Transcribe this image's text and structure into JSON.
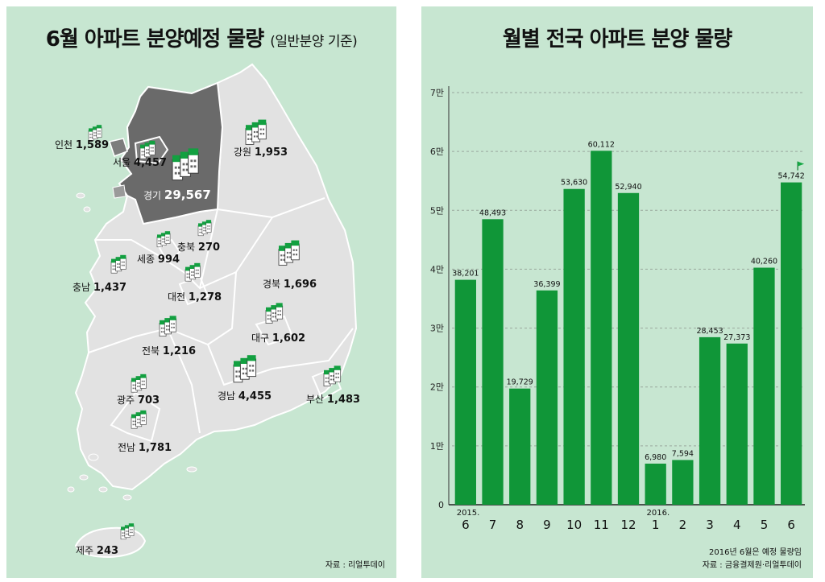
{
  "map_panel": {
    "title": "6월 아파트 분양예정 물량",
    "title_note": "(일반분양 기준)",
    "source": "자료 : 리얼투데이",
    "regions": [
      {
        "id": "incheon",
        "name": "인천",
        "value": "1,589"
      },
      {
        "id": "seoul",
        "name": "서울",
        "value": "4,457"
      },
      {
        "id": "gyeonggi",
        "name": "경기",
        "value": "29,567"
      },
      {
        "id": "gangwon",
        "name": "강원",
        "value": "1,953"
      },
      {
        "id": "chungbuk",
        "name": "충북",
        "value": "270"
      },
      {
        "id": "sejong",
        "name": "세종",
        "value": "994"
      },
      {
        "id": "chungnam",
        "name": "충남",
        "value": "1,437"
      },
      {
        "id": "daejeon",
        "name": "대전",
        "value": "1,278"
      },
      {
        "id": "gyeongbuk",
        "name": "경북",
        "value": "1,696"
      },
      {
        "id": "daegu",
        "name": "대구",
        "value": "1,602"
      },
      {
        "id": "jeonbuk",
        "name": "전북",
        "value": "1,216"
      },
      {
        "id": "gwangju",
        "name": "광주",
        "value": "703"
      },
      {
        "id": "gyeongnam",
        "name": "경남",
        "value": "4,455"
      },
      {
        "id": "busan",
        "name": "부산",
        "value": "1,483"
      },
      {
        "id": "jeonnam",
        "name": "전남",
        "value": "1,781"
      },
      {
        "id": "jeju",
        "name": "제주",
        "value": "243"
      }
    ]
  },
  "chart_panel": {
    "title": "월별 전국 아파트 분양 물량",
    "note": "2016년 6월은 예정 물량임",
    "source": "자료 : 금융결제원·리얼투데이"
  },
  "chart_data": {
    "type": "bar",
    "title": "월별 전국 아파트 분양 물량",
    "categories": [
      "6",
      "7",
      "8",
      "9",
      "10",
      "11",
      "12",
      "1",
      "2",
      "3",
      "4",
      "5",
      "6"
    ],
    "year_labels": [
      {
        "index": 0,
        "label": "2015."
      },
      {
        "index": 7,
        "label": "2016."
      }
    ],
    "values": [
      38201,
      48493,
      19729,
      36399,
      53630,
      60112,
      52940,
      6980,
      7594,
      28453,
      27373,
      40260,
      54742
    ],
    "value_labels": [
      "38,201",
      "48,493",
      "19,729",
      "36,399",
      "53,630",
      "60,112",
      "52,940",
      "6,980",
      "7,594",
      "28,453",
      "27,373",
      "40,260",
      "54,742"
    ],
    "y_ticks": [
      {
        "value": 0,
        "label": "0"
      },
      {
        "value": 10000,
        "label": "1만"
      },
      {
        "value": 20000,
        "label": "2만"
      },
      {
        "value": 30000,
        "label": "3만"
      },
      {
        "value": 40000,
        "label": "4만"
      },
      {
        "value": 50000,
        "label": "5만"
      },
      {
        "value": 60000,
        "label": "6만"
      },
      {
        "value": 70000,
        "label": "7만"
      }
    ],
    "ylim": [
      0,
      70000
    ],
    "bar_color": "#109638",
    "grid": "dashed horizontal",
    "flagged_index": 12
  }
}
